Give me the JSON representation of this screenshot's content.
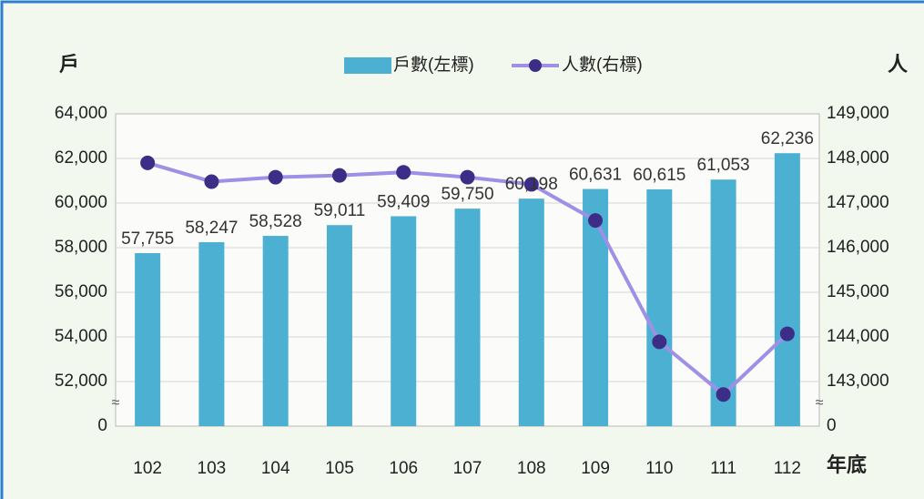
{
  "chart_data": {
    "type": "bar_line",
    "y_axis_label": "戶",
    "y2_axis_label": "人",
    "x_axis_label": "年底",
    "categories": [
      "102",
      "103",
      "104",
      "105",
      "106",
      "107",
      "108",
      "109",
      "110",
      "111",
      "112"
    ],
    "series": [
      {
        "name": "戶數(左標)",
        "type": "bar",
        "color": "#4bb0d2",
        "values": [
          57755,
          58247,
          58528,
          59011,
          59409,
          59750,
          60198,
          60631,
          60615,
          61053,
          62236
        ],
        "value_labels": [
          "57,755",
          "58,247",
          "58,528",
          "59,011",
          "59,409",
          "59,750",
          "60,198",
          "60,631",
          "60,615",
          "61,053",
          "62,236"
        ]
      },
      {
        "name": "人數(右標)",
        "type": "line",
        "axis": "y2",
        "color": "#a08fe6",
        "marker_color": "#3c2d86",
        "values": [
          147900,
          147480,
          147580,
          147620,
          147690,
          147580,
          147420,
          146610,
          143890,
          142710,
          144070
        ]
      }
    ],
    "ylim": [
      0,
      64000
    ],
    "yticks": [
      0,
      {
        "value": 52000,
        "label": "52,000"
      },
      {
        "value": 54000,
        "label": "54,000"
      },
      {
        "value": 56000,
        "label": "56,000"
      },
      {
        "value": 58000,
        "label": "58,000"
      },
      {
        "value": 60000,
        "label": "60,000"
      },
      {
        "value": 62000,
        "label": "62,000"
      },
      {
        "value": 64000,
        "label": "64,000"
      }
    ],
    "y2lim": [
      0,
      149000
    ],
    "y2ticks": [
      0,
      {
        "value": 143000,
        "label": "143,000"
      },
      {
        "value": 144000,
        "label": "144,000"
      },
      {
        "value": 145000,
        "label": "145,000"
      },
      {
        "value": 146000,
        "label": "146,000"
      },
      {
        "value": 147000,
        "label": "147,000"
      },
      {
        "value": 148000,
        "label": "148,000"
      },
      {
        "value": 149000,
        "label": "149,000"
      }
    ],
    "axis_break": true,
    "grid": true,
    "legend": "top"
  }
}
